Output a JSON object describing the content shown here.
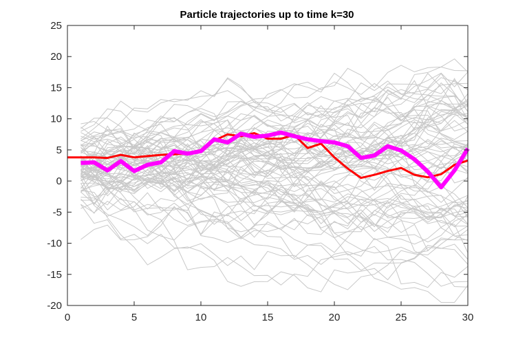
{
  "chart_data": {
    "type": "line",
    "title": "Particle trajectories up to time k=30",
    "xlabel": "",
    "ylabel": "",
    "xlim": [
      0,
      30
    ],
    "ylim": [
      -20,
      25
    ],
    "xticks": [
      0,
      5,
      10,
      15,
      20,
      25,
      30
    ],
    "yticks": [
      25,
      20,
      15,
      10,
      5,
      0,
      -5,
      -10,
      -15,
      -20
    ],
    "grid": false,
    "legend": "none",
    "background_particles": {
      "count": 80,
      "color": "#c8c8c8",
      "description_note": ""
    },
    "series": [
      {
        "color": "#ff0000",
        "line_width": "medium",
        "x": [
          0,
          1,
          2,
          3,
          4,
          5,
          6,
          7,
          8,
          9,
          10,
          11,
          12,
          13,
          14,
          15,
          16,
          17,
          18,
          19,
          20,
          21,
          22,
          23,
          24,
          25,
          26,
          27,
          28,
          29,
          30
        ],
        "values": [
          3.8,
          3.8,
          3.8,
          3.7,
          4.2,
          3.8,
          4.0,
          4.2,
          4.3,
          4.4,
          5.0,
          6.5,
          7.5,
          7.2,
          7.7,
          6.8,
          6.8,
          7.4,
          5.3,
          6.0,
          3.8,
          2.0,
          0.5,
          1.0,
          1.6,
          2.1,
          1.0,
          0.6,
          1.1,
          2.6,
          3.3
        ]
      },
      {
        "color": "#ff00ff",
        "line_width": "thick",
        "x": [
          1,
          2,
          3,
          4,
          5,
          6,
          7,
          8,
          9,
          10,
          11,
          12,
          13,
          14,
          15,
          16,
          17,
          18,
          19,
          20,
          21,
          22,
          23,
          24,
          25,
          26,
          27,
          28,
          29,
          30
        ],
        "values": [
          2.9,
          3.0,
          1.7,
          3.2,
          1.6,
          2.6,
          3.0,
          4.8,
          4.4,
          4.8,
          6.7,
          6.2,
          7.6,
          7.1,
          7.3,
          7.8,
          7.2,
          6.7,
          6.4,
          6.2,
          5.6,
          3.7,
          4.1,
          5.6,
          4.9,
          3.5,
          1.5,
          -1.0,
          1.7,
          5.2
        ]
      }
    ]
  }
}
